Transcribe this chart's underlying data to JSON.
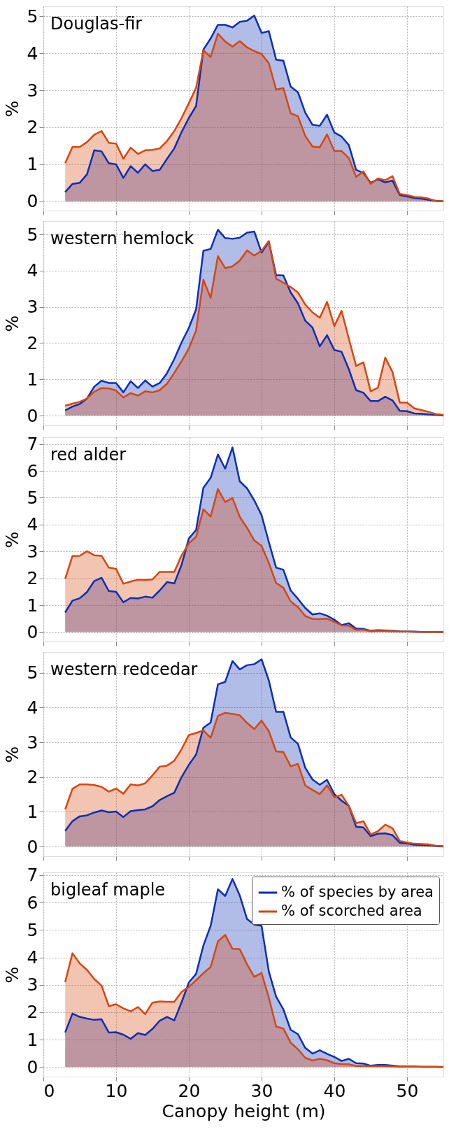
{
  "chart_data": [
    {
      "type": "area",
      "title": "Douglas-fir",
      "ylabel": "%",
      "xlim": [
        0,
        55
      ],
      "xticks": [
        0,
        10,
        20,
        30,
        40,
        50
      ],
      "ylim": [
        -0.25,
        5.27
      ],
      "yticks": [
        0,
        1,
        2,
        3,
        4,
        5
      ],
      "grid": true,
      "tick_labels": "y",
      "x": [
        3,
        4,
        5,
        6,
        7,
        8,
        9,
        10,
        11,
        12,
        13,
        14,
        15,
        16,
        17,
        18,
        19,
        20,
        21,
        22,
        23,
        24,
        25,
        26,
        27,
        28,
        29,
        30,
        31,
        32,
        33,
        34,
        35,
        36,
        37,
        38,
        39,
        40,
        41,
        42,
        43,
        44,
        45,
        46,
        47,
        48,
        49,
        50,
        51,
        52,
        53,
        54,
        55
      ],
      "series": [
        {
          "color": "#0b2fb4",
          "values": [
            0.25,
            0.47,
            0.5,
            0.73,
            1.38,
            1.35,
            1.03,
            1.0,
            0.63,
            0.95,
            0.77,
            1.0,
            0.82,
            0.85,
            1.15,
            1.43,
            1.87,
            2.25,
            2.58,
            4.1,
            4.4,
            4.77,
            4.77,
            4.7,
            4.85,
            4.88,
            5.02,
            4.55,
            4.6,
            3.83,
            3.8,
            3.1,
            2.95,
            2.4,
            2.07,
            2.04,
            2.34,
            1.86,
            1.75,
            1.52,
            0.85,
            0.77,
            0.5,
            0.6,
            0.51,
            0.56,
            0.17,
            0.13,
            0.09,
            0.07,
            0.04,
            0.01,
            0
          ]
        },
        {
          "color": "#d6470f",
          "values": [
            1.03,
            1.47,
            1.47,
            1.6,
            1.8,
            1.9,
            1.58,
            1.56,
            1.15,
            1.45,
            1.28,
            1.38,
            1.39,
            1.43,
            1.63,
            1.9,
            2.25,
            2.65,
            3.07,
            4.08,
            3.9,
            4.53,
            4.32,
            4.18,
            4.33,
            4.16,
            4.06,
            3.98,
            3.73,
            3.02,
            3.06,
            2.38,
            2.3,
            1.77,
            1.48,
            1.46,
            1.81,
            1.36,
            1.36,
            1.17,
            0.66,
            0.81,
            0.47,
            0.62,
            0.57,
            0.68,
            0.2,
            0.17,
            0.12,
            0.11,
            0.07,
            0.01,
            0
          ]
        }
      ]
    },
    {
      "type": "area",
      "title": "western hemlock",
      "ylabel": "%",
      "xlim": [
        0,
        55
      ],
      "xticks": [
        0,
        10,
        20,
        30,
        40,
        50
      ],
      "ylim": [
        -0.27,
        5.37
      ],
      "yticks": [
        0,
        1,
        2,
        3,
        4,
        5
      ],
      "grid": true,
      "tick_labels": "y",
      "x": [
        3,
        4,
        5,
        6,
        7,
        8,
        9,
        10,
        11,
        12,
        13,
        14,
        15,
        16,
        17,
        18,
        19,
        20,
        21,
        22,
        23,
        24,
        25,
        26,
        27,
        28,
        29,
        30,
        31,
        32,
        33,
        34,
        35,
        36,
        37,
        38,
        39,
        40,
        41,
        42,
        43,
        44,
        45,
        46,
        47,
        48,
        49,
        50,
        51,
        52,
        53,
        54,
        55
      ],
      "series": [
        {
          "color": "#0b2fb4",
          "values": [
            0.14,
            0.25,
            0.32,
            0.47,
            0.8,
            0.96,
            0.9,
            0.9,
            0.64,
            0.95,
            0.76,
            0.97,
            0.8,
            0.9,
            1.17,
            1.56,
            2.02,
            2.42,
            2.93,
            4.55,
            4.6,
            5.13,
            4.9,
            4.88,
            4.91,
            5.05,
            5.08,
            4.5,
            4.8,
            3.88,
            3.87,
            3.4,
            3.1,
            2.62,
            2.43,
            1.91,
            2.22,
            1.81,
            1.76,
            1.28,
            0.7,
            0.63,
            0.4,
            0.4,
            0.52,
            0.42,
            0.13,
            0.12,
            0.06,
            0.05,
            0.03,
            0.02,
            0
          ]
        },
        {
          "color": "#d6470f",
          "values": [
            0.27,
            0.33,
            0.38,
            0.47,
            0.66,
            0.76,
            0.75,
            0.69,
            0.5,
            0.62,
            0.55,
            0.67,
            0.64,
            0.7,
            0.88,
            1.18,
            1.5,
            1.85,
            2.35,
            3.75,
            3.25,
            4.4,
            4.07,
            4.12,
            4.28,
            4.56,
            4.42,
            4.55,
            4.82,
            3.78,
            3.67,
            3.55,
            3.4,
            3.07,
            2.85,
            2.7,
            3.14,
            2.47,
            2.89,
            2.12,
            1.37,
            1.47,
            0.67,
            0.77,
            1.6,
            1.2,
            0.36,
            0.36,
            0.2,
            0.15,
            0.1,
            0.04,
            0.02
          ]
        }
      ]
    },
    {
      "type": "area",
      "title": "red alder",
      "ylabel": "%",
      "xlim": [
        0,
        55
      ],
      "xticks": [
        0,
        10,
        20,
        30,
        40,
        50
      ],
      "ylim": [
        -0.35,
        7.25
      ],
      "yticks": [
        0,
        1,
        2,
        3,
        4,
        5,
        6,
        7
      ],
      "grid": true,
      "tick_labels": "y",
      "x": [
        3,
        4,
        5,
        6,
        7,
        8,
        9,
        10,
        11,
        12,
        13,
        14,
        15,
        16,
        17,
        18,
        19,
        20,
        21,
        22,
        23,
        24,
        25,
        26,
        27,
        28,
        29,
        30,
        31,
        32,
        33,
        34,
        35,
        36,
        37,
        38,
        39,
        40,
        41,
        42,
        43,
        44,
        45,
        46,
        47,
        48,
        49,
        50,
        51,
        52,
        53,
        54,
        55
      ],
      "series": [
        {
          "color": "#0b2fb4",
          "values": [
            0.73,
            1.17,
            1.26,
            1.49,
            1.9,
            2.02,
            1.53,
            1.5,
            1.11,
            1.27,
            1.25,
            1.32,
            1.28,
            1.55,
            1.86,
            1.81,
            2.5,
            3.48,
            3.8,
            5.37,
            5.74,
            6.61,
            6.08,
            6.87,
            5.61,
            5.35,
            4.9,
            4.35,
            3.35,
            2.4,
            2.32,
            1.55,
            1.24,
            0.9,
            0.66,
            0.7,
            0.61,
            0.46,
            0.26,
            0.33,
            0.13,
            0.12,
            0.05,
            0.07,
            0.06,
            0.05,
            0.03,
            0.02,
            0.02,
            0.01,
            0.01,
            0.01,
            0
          ]
        },
        {
          "color": "#d6470f",
          "values": [
            1.98,
            2.83,
            2.84,
            3.01,
            2.86,
            2.84,
            2.4,
            2.35,
            1.8,
            1.88,
            1.95,
            1.94,
            1.96,
            2.24,
            2.24,
            2.24,
            2.85,
            3.3,
            3.55,
            4.57,
            4.3,
            5.32,
            4.84,
            4.99,
            4.29,
            3.88,
            3.41,
            3.21,
            2.57,
            1.83,
            1.65,
            1.14,
            0.93,
            0.6,
            0.49,
            0.48,
            0.5,
            0.38,
            0.25,
            0.24,
            0.08,
            0.09,
            0.03,
            0.05,
            0.04,
            0.03,
            0.02,
            0.02,
            0.01,
            0.01,
            0.01,
            0.01,
            0
          ]
        }
      ]
    },
    {
      "type": "area",
      "title": "western redcedar",
      "ylabel": "%",
      "xlim": [
        0,
        55
      ],
      "xticks": [
        0,
        10,
        20,
        30,
        40,
        50
      ],
      "ylim": [
        -0.28,
        5.6
      ],
      "yticks": [
        0,
        1,
        2,
        3,
        4,
        5
      ],
      "grid": true,
      "tick_labels": "y",
      "x": [
        3,
        4,
        5,
        6,
        7,
        8,
        9,
        10,
        11,
        12,
        13,
        14,
        15,
        16,
        17,
        18,
        19,
        20,
        21,
        22,
        23,
        24,
        25,
        26,
        27,
        28,
        29,
        30,
        31,
        32,
        33,
        34,
        35,
        36,
        37,
        38,
        39,
        40,
        41,
        42,
        43,
        44,
        45,
        46,
        47,
        48,
        49,
        50,
        51,
        52,
        53,
        54,
        55
      ],
      "series": [
        {
          "color": "#0b2fb4",
          "values": [
            0.45,
            0.73,
            0.87,
            0.9,
            0.98,
            1.04,
            0.99,
            1.01,
            0.85,
            1.02,
            1.05,
            1.07,
            1.16,
            1.34,
            1.45,
            1.55,
            2.0,
            2.35,
            2.65,
            3.42,
            3.57,
            4.67,
            4.74,
            5.34,
            5.1,
            5.22,
            5.25,
            5.39,
            4.78,
            3.88,
            3.88,
            3.14,
            2.96,
            2.27,
            1.93,
            1.78,
            1.92,
            1.51,
            1.32,
            1.17,
            0.57,
            0.55,
            0.3,
            0.37,
            0.38,
            0.33,
            0.11,
            0.09,
            0.05,
            0.04,
            0.03,
            0.01,
            0
          ]
        },
        {
          "color": "#d6470f",
          "values": [
            1.07,
            1.66,
            1.79,
            1.79,
            1.77,
            1.72,
            1.58,
            1.67,
            1.52,
            1.79,
            1.76,
            1.82,
            2.05,
            2.3,
            2.33,
            2.47,
            2.8,
            3.21,
            3.27,
            3.34,
            3.13,
            3.76,
            3.85,
            3.82,
            3.78,
            3.56,
            3.38,
            3.63,
            3.32,
            2.74,
            2.72,
            2.31,
            2.38,
            1.76,
            1.63,
            1.51,
            1.76,
            1.42,
            1.49,
            1.17,
            0.67,
            0.73,
            0.35,
            0.44,
            0.63,
            0.53,
            0.16,
            0.12,
            0.08,
            0.07,
            0.06,
            0.02,
            0.01
          ]
        }
      ]
    },
    {
      "type": "area",
      "title": "bigleaf maple",
      "ylabel": "%",
      "xlabel": "Canopy height (m)",
      "xlim": [
        0,
        55
      ],
      "xticks": [
        0,
        10,
        20,
        30,
        40,
        50
      ],
      "ylim": [
        -0.35,
        7.1
      ],
      "yticks": [
        0,
        1,
        2,
        3,
        4,
        5,
        6,
        7
      ],
      "grid": true,
      "legend": "top right",
      "x": [
        3,
        4,
        5,
        6,
        7,
        8,
        9,
        10,
        11,
        12,
        13,
        14,
        15,
        16,
        17,
        18,
        19,
        20,
        21,
        22,
        23,
        24,
        25,
        26,
        27,
        28,
        29,
        30,
        31,
        32,
        33,
        34,
        35,
        36,
        37,
        38,
        39,
        40,
        41,
        42,
        43,
        44,
        45,
        46,
        47,
        48,
        49,
        50,
        51,
        52,
        53,
        54,
        55
      ],
      "series": [
        {
          "name": "% of species by area",
          "color": "#0b2fb4",
          "values": [
            1.26,
            1.95,
            1.83,
            1.77,
            1.72,
            1.74,
            1.26,
            1.27,
            1.18,
            1.03,
            1.24,
            1.17,
            1.39,
            1.69,
            1.83,
            1.7,
            2.36,
            3.08,
            3.4,
            4.43,
            5.15,
            6.48,
            6.24,
            6.86,
            6.26,
            5.4,
            5.2,
            5.15,
            3.48,
            2.57,
            2.1,
            1.36,
            1.2,
            0.7,
            0.49,
            0.61,
            0.48,
            0.37,
            0.22,
            0.3,
            0.14,
            0.13,
            0.05,
            0.08,
            0.08,
            0.05,
            0.02,
            0.02,
            0.02,
            0.01,
            0.01,
            0.01,
            0
          ]
        },
        {
          "name": "% of scorched area",
          "color": "#d6470f",
          "values": [
            3.1,
            4.15,
            3.78,
            3.54,
            3.21,
            2.97,
            2.22,
            2.29,
            2.14,
            2.03,
            2.19,
            1.93,
            2.35,
            2.39,
            2.38,
            2.38,
            2.74,
            2.92,
            3.17,
            3.42,
            3.65,
            4.58,
            4.82,
            4.31,
            4.3,
            3.75,
            3.29,
            3.43,
            2.53,
            1.48,
            1.4,
            0.89,
            0.65,
            0.34,
            0.24,
            0.3,
            0.25,
            0.14,
            0.11,
            0.1,
            0.04,
            0.04,
            0.03,
            0.03,
            0.03,
            0.02,
            0.01,
            0.01,
            0.01,
            0.01,
            0.01,
            0.01,
            0
          ]
        }
      ]
    }
  ]
}
